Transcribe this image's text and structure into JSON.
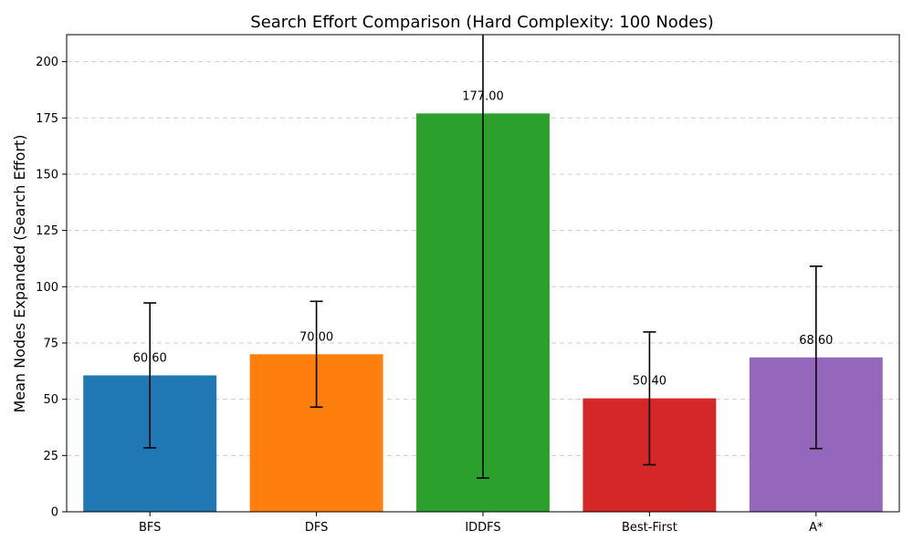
{
  "chart_data": {
    "type": "bar",
    "title": "Search Effort Comparison (Hard Complexity: 100 Nodes)",
    "xlabel": "",
    "ylabel": "Mean Nodes Expanded (Search Effort)",
    "categories": [
      "BFS",
      "DFS",
      "IDDFS",
      "Best-First",
      "A*"
    ],
    "values": [
      60.6,
      70.0,
      177.0,
      50.4,
      68.6
    ],
    "value_labels": [
      "60.60",
      "70.00",
      "177.00",
      "50.40",
      "68.60"
    ],
    "errors": [
      32.2,
      23.5,
      162.0,
      29.5,
      40.5
    ],
    "colors": [
      "#1f77b4",
      "#ff7f0e",
      "#2ca02c",
      "#d62728",
      "#9467bd"
    ],
    "ylim": [
      0,
      212
    ],
    "yticks": [
      0,
      25,
      50,
      75,
      100,
      125,
      150,
      175,
      200
    ],
    "ytick_labels": [
      "0",
      "25",
      "50",
      "75",
      "100",
      "125",
      "150",
      "175",
      "200"
    ],
    "grid": "y-dashed",
    "legend": "none"
  }
}
